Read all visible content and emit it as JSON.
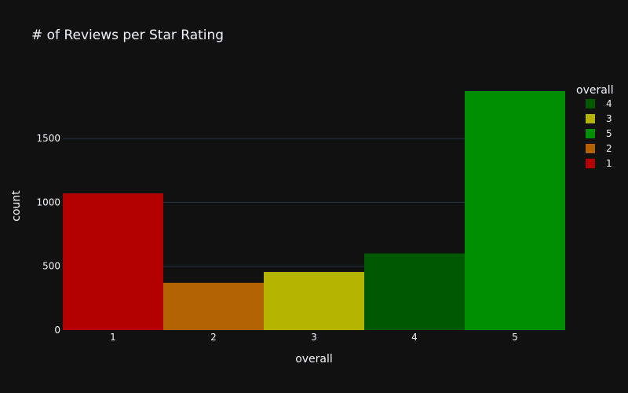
{
  "chart_data": {
    "type": "bar",
    "title": "# of Reviews per Star Rating",
    "xlabel": "overall",
    "ylabel": "count",
    "categories": [
      "1",
      "2",
      "3",
      "4",
      "5"
    ],
    "series": [
      {
        "name": "1",
        "category": "1",
        "value": 1070,
        "color": "#b30000"
      },
      {
        "name": "2",
        "category": "2",
        "value": 370,
        "color": "#b36200"
      },
      {
        "name": "3",
        "category": "3",
        "value": 455,
        "color": "#b3b300"
      },
      {
        "name": "4",
        "category": "4",
        "value": 600,
        "color": "#005900"
      },
      {
        "name": "5",
        "category": "5",
        "value": 1870,
        "color": "#008f00"
      }
    ],
    "ylim": [
      0,
      1968
    ],
    "yticks": [
      0,
      500,
      1000,
      1500
    ],
    "grid": true,
    "legend": {
      "title": "overall",
      "placement": "right",
      "order": [
        "4",
        "3",
        "5",
        "2",
        "1"
      ]
    },
    "colors": {
      "background": "#111111",
      "grid": "#283442",
      "text": "#f2f5fa"
    }
  }
}
